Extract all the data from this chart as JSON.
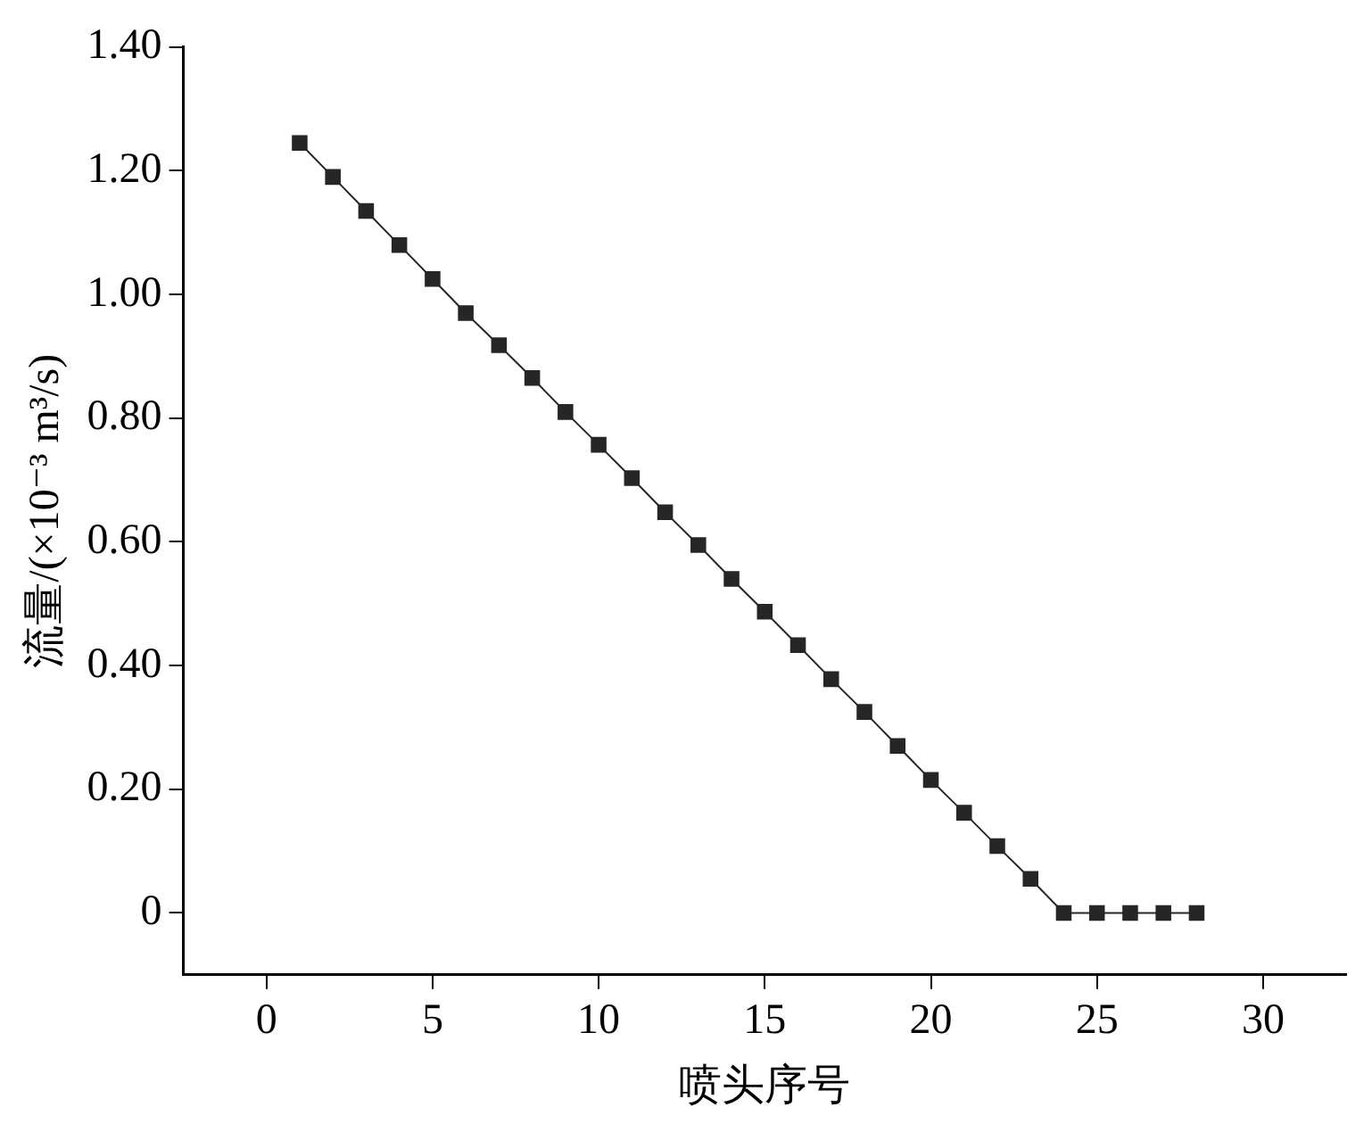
{
  "chart_data": {
    "type": "line",
    "xlabel": "喷头序号",
    "ylabel": "流量/(×10⁻³ m³/s)",
    "x": [
      1,
      2,
      3,
      4,
      5,
      6,
      7,
      8,
      9,
      10,
      11,
      12,
      13,
      14,
      15,
      16,
      17,
      18,
      19,
      20,
      21,
      22,
      23,
      24,
      25,
      26,
      27,
      28
    ],
    "series": [
      {
        "color": "#262626",
        "values": [
          1.245,
          1.19,
          1.135,
          1.08,
          1.025,
          0.97,
          0.918,
          0.865,
          0.81,
          0.757,
          0.703,
          0.648,
          0.595,
          0.54,
          0.487,
          0.433,
          0.378,
          0.325,
          0.27,
          0.215,
          0.162,
          0.108,
          0.055,
          0,
          0,
          0,
          0,
          0
        ]
      }
    ],
    "xlim": [
      -2.5,
      32.5
    ],
    "xticks": [
      0,
      5,
      10,
      15,
      20,
      25,
      30
    ],
    "ylim": [
      -0.1,
      1.4
    ],
    "yticks": [
      0,
      {
        "value": 0.2,
        "label": "0.20"
      },
      {
        "value": 0.4,
        "label": "0.40"
      },
      {
        "value": 0.6,
        "label": "0.60"
      },
      {
        "value": 0.8,
        "label": "0.80"
      },
      {
        "value": 1,
        "label": "1.00"
      },
      {
        "value": 1.2,
        "label": "1.20"
      },
      {
        "value": 1.4,
        "label": "1.40"
      }
    ],
    "marker": "square",
    "line_style": "solid",
    "legend": false
  }
}
